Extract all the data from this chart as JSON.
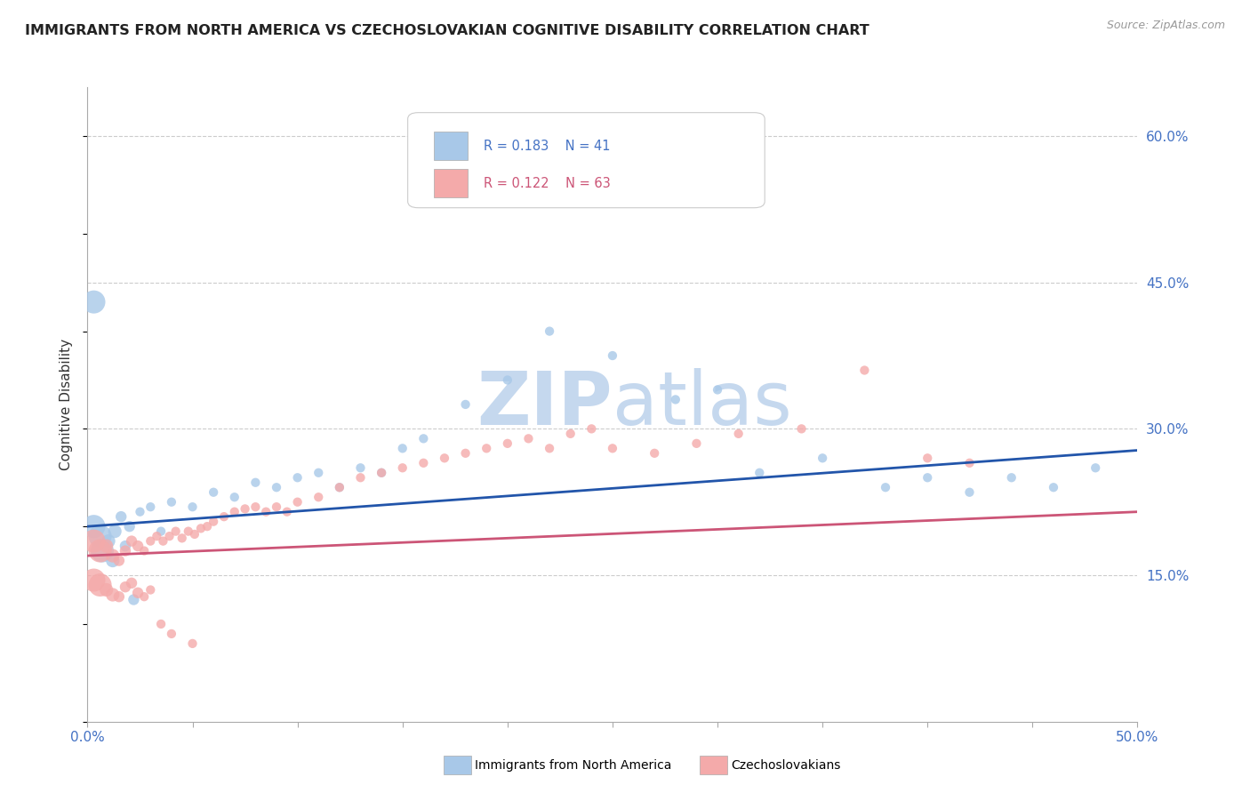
{
  "title": "IMMIGRANTS FROM NORTH AMERICA VS CZECHOSLOVAKIAN COGNITIVE DISABILITY CORRELATION CHART",
  "source_text": "Source: ZipAtlas.com",
  "ylabel": "Cognitive Disability",
  "xlim": [
    0.0,
    0.5
  ],
  "ylim": [
    0.0,
    0.65
  ],
  "yticks_right": [
    0.15,
    0.3,
    0.45,
    0.6
  ],
  "ytick_labels_right": [
    "15.0%",
    "30.0%",
    "45.0%",
    "60.0%"
  ],
  "blue_R": 0.183,
  "blue_N": 41,
  "pink_R": 0.122,
  "pink_N": 63,
  "blue_color": "#A8C8E8",
  "pink_color": "#F4AAAA",
  "blue_line_color": "#2255AA",
  "pink_line_color": "#CC5577",
  "watermark_color": "#D5E5F5",
  "legend_label_blue": "Immigrants from North America",
  "legend_label_pink": "Czechoslovakians",
  "blue_scatter_x": [
    0.003,
    0.006,
    0.01,
    0.013,
    0.016,
    0.02,
    0.025,
    0.03,
    0.035,
    0.04,
    0.05,
    0.06,
    0.07,
    0.08,
    0.09,
    0.1,
    0.11,
    0.12,
    0.13,
    0.14,
    0.15,
    0.16,
    0.18,
    0.2,
    0.22,
    0.25,
    0.28,
    0.3,
    0.32,
    0.35,
    0.38,
    0.4,
    0.42,
    0.44,
    0.46,
    0.48,
    0.003,
    0.007,
    0.012,
    0.018,
    0.022
  ],
  "blue_scatter_y": [
    0.2,
    0.19,
    0.185,
    0.195,
    0.21,
    0.2,
    0.215,
    0.22,
    0.195,
    0.225,
    0.22,
    0.235,
    0.23,
    0.245,
    0.24,
    0.25,
    0.255,
    0.24,
    0.26,
    0.255,
    0.28,
    0.29,
    0.325,
    0.35,
    0.4,
    0.375,
    0.33,
    0.34,
    0.255,
    0.27,
    0.24,
    0.25,
    0.235,
    0.25,
    0.24,
    0.26,
    0.43,
    0.175,
    0.165,
    0.18,
    0.125
  ],
  "pink_scatter_x": [
    0.003,
    0.006,
    0.009,
    0.012,
    0.015,
    0.018,
    0.021,
    0.024,
    0.027,
    0.03,
    0.033,
    0.036,
    0.039,
    0.042,
    0.045,
    0.048,
    0.051,
    0.054,
    0.057,
    0.06,
    0.065,
    0.07,
    0.075,
    0.08,
    0.085,
    0.09,
    0.095,
    0.1,
    0.11,
    0.12,
    0.13,
    0.14,
    0.15,
    0.16,
    0.17,
    0.18,
    0.19,
    0.2,
    0.21,
    0.22,
    0.23,
    0.24,
    0.25,
    0.27,
    0.29,
    0.31,
    0.34,
    0.37,
    0.4,
    0.42,
    0.003,
    0.006,
    0.009,
    0.012,
    0.015,
    0.018,
    0.021,
    0.024,
    0.027,
    0.03,
    0.035,
    0.04,
    0.05
  ],
  "pink_scatter_y": [
    0.185,
    0.175,
    0.18,
    0.17,
    0.165,
    0.175,
    0.185,
    0.18,
    0.175,
    0.185,
    0.19,
    0.185,
    0.19,
    0.195,
    0.188,
    0.195,
    0.192,
    0.198,
    0.2,
    0.205,
    0.21,
    0.215,
    0.218,
    0.22,
    0.215,
    0.22,
    0.215,
    0.225,
    0.23,
    0.24,
    0.25,
    0.255,
    0.26,
    0.265,
    0.27,
    0.275,
    0.28,
    0.285,
    0.29,
    0.28,
    0.295,
    0.3,
    0.28,
    0.275,
    0.285,
    0.295,
    0.3,
    0.36,
    0.27,
    0.265,
    0.145,
    0.14,
    0.135,
    0.13,
    0.128,
    0.138,
    0.142,
    0.132,
    0.128,
    0.135,
    0.1,
    0.09,
    0.08
  ],
  "title_fontsize": 11.5,
  "tick_fontsize": 11,
  "ylabel_fontsize": 11,
  "source_fontsize": 9,
  "legend_fontsize": 10.5
}
